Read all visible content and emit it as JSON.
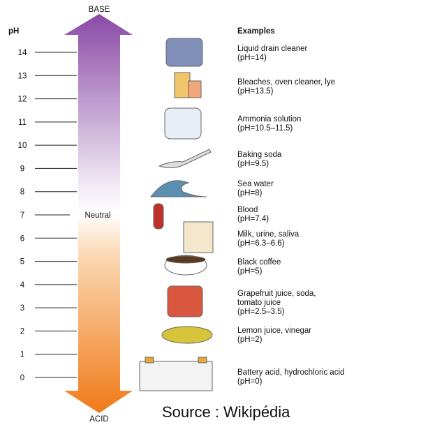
{
  "scale": {
    "axis_label": "pH",
    "top_label": "BASE",
    "bottom_label": "ACID",
    "neutral_label": "Neutral",
    "ticks": [
      "14",
      "13",
      "12",
      "11",
      "10",
      "9",
      "8",
      "7",
      "6",
      "5",
      "4",
      "3",
      "2",
      "1",
      "0"
    ]
  },
  "examples": {
    "header": "Examples",
    "items": [
      {
        "lines": [
          "Liquid drain cleaner",
          "(pH=14)"
        ]
      },
      {
        "lines": [
          "Bleaches, oven cleaner, lye",
          "(pH=13.5)"
        ]
      },
      {
        "lines": [
          "Ammonia solution",
          "(pH=10.5–11.5)"
        ]
      },
      {
        "lines": [
          "Baking soda",
          "(pH=9.5)"
        ]
      },
      {
        "lines": [
          "Sea water",
          "(pH=8)"
        ]
      },
      {
        "lines": [
          "Blood",
          "(pH=7.4)"
        ]
      },
      {
        "lines": [
          "Milk, urine, saliva",
          "(pH=6.3–6.6)"
        ]
      },
      {
        "lines": [
          "Black coffee",
          "(pH=5)"
        ]
      },
      {
        "lines": [
          "Grapefruit juice, soda,",
          "tomato juice",
          "(pH=2.5–3.5)"
        ]
      },
      {
        "lines": [
          "Lemon juice, vinegar",
          "(pH=2)"
        ]
      },
      {
        "lines": [
          "Battery acid, hydrochloric acid",
          "(pH=0)"
        ]
      }
    ]
  },
  "source": "Source : Wikipédia"
}
